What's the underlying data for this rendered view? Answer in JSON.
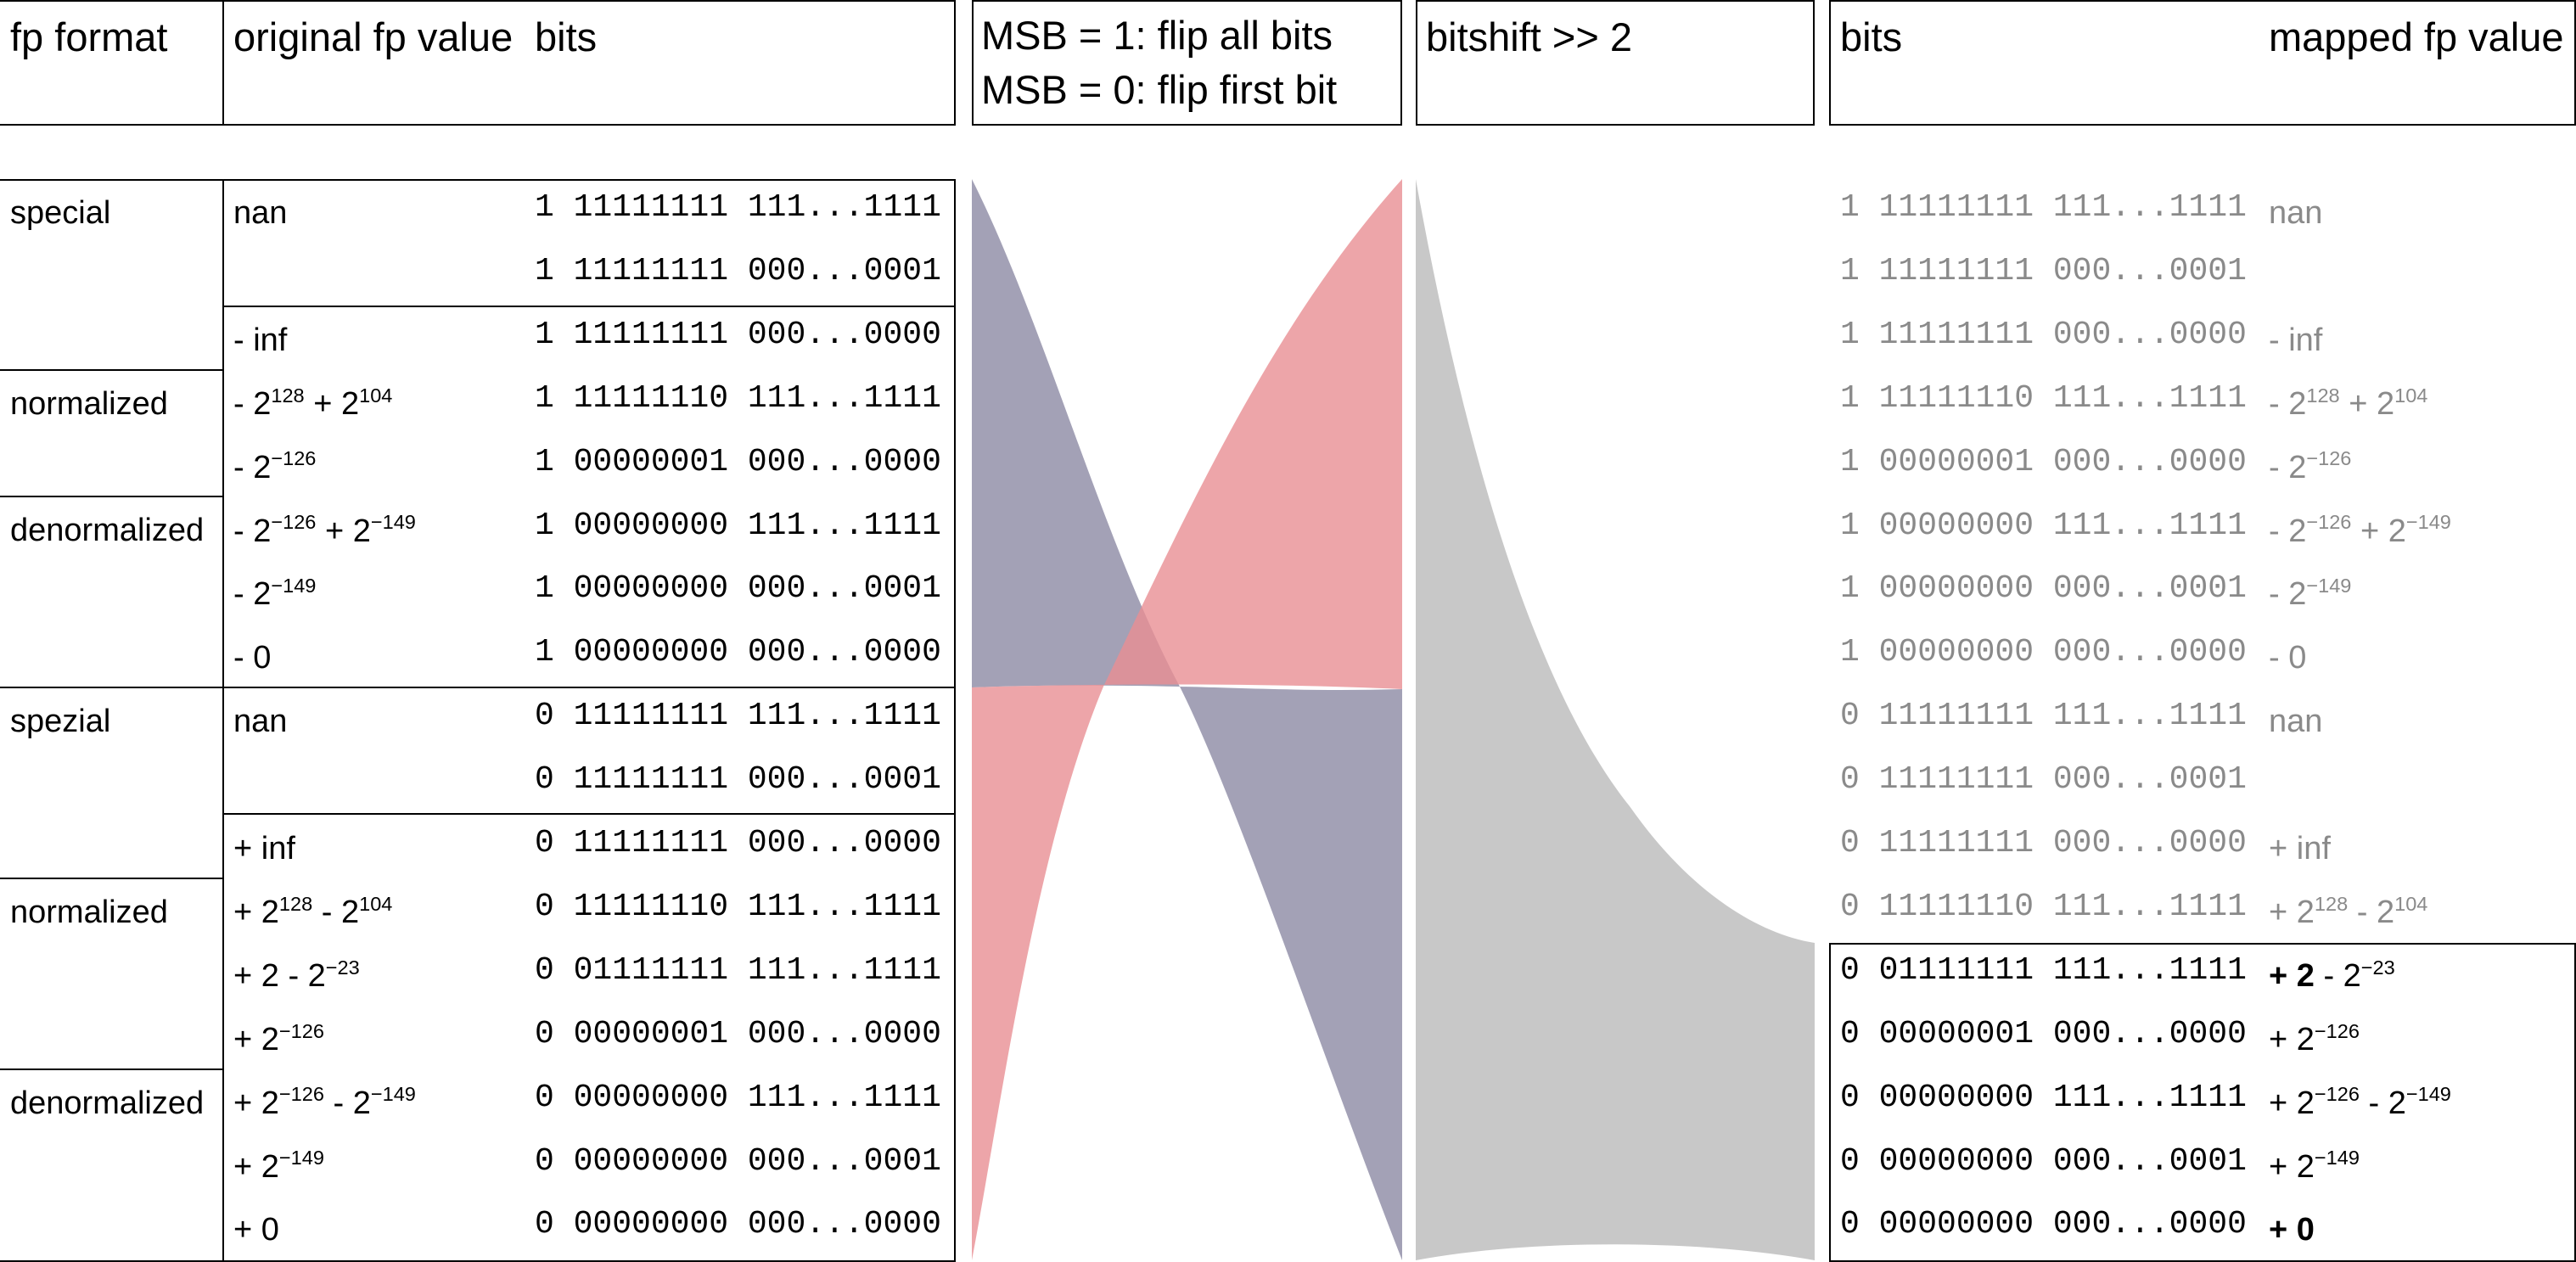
{
  "headers": {
    "fp_format": "fp format",
    "original_value": "original fp value",
    "bits": "bits",
    "flip_line1": "MSB = 1: flip all bits",
    "flip_line2": "MSB = 0: flip first bit",
    "bitshift": "bitshift >> 2",
    "bits_right": "bits",
    "mapped_value": "mapped fp value"
  },
  "formats": [
    "special",
    "normalized",
    "denormalized",
    "spezial",
    "normalized",
    "denormalized"
  ],
  "rows": [
    {
      "value": [
        "nan"
      ],
      "bits": "1 11111111 111...1111"
    },
    {
      "value": [],
      "bits": "1 11111111 000...0001"
    },
    {
      "value": [
        "- inf"
      ],
      "bits": "1 11111111 000...0000"
    },
    {
      "value": [
        "- 2",
        "128",
        " + 2",
        "104"
      ],
      "bits": "1 11111110 111...1111"
    },
    {
      "value": [
        "- 2",
        "−126"
      ],
      "bits": "1 00000001 000...0000"
    },
    {
      "value": [
        "- 2",
        "−126",
        " + 2",
        "−149"
      ],
      "bits": "1 00000000 111...1111"
    },
    {
      "value": [
        "- 2",
        "−149"
      ],
      "bits": "1 00000000 000...0001"
    },
    {
      "value": [
        "- 0"
      ],
      "bits": "1 00000000 000...0000"
    },
    {
      "value": [
        "nan"
      ],
      "bits": "0 11111111 111...1111"
    },
    {
      "value": [],
      "bits": "0 11111111 000...0001"
    },
    {
      "value": [
        "+ inf"
      ],
      "bits": "0 11111111 000...0000"
    },
    {
      "value": [
        "+ 2",
        "128",
        " - 2",
        "104"
      ],
      "bits": "0 11111110 111...1111"
    },
    {
      "value": [
        "+ 2 - 2",
        "−23"
      ],
      "bits": "0 01111111 111...1111"
    },
    {
      "value": [
        "+ 2",
        "−126"
      ],
      "bits": "0 00000001 000...0000"
    },
    {
      "value": [
        "+ 2",
        "−126",
        " - 2",
        "−149"
      ],
      "bits": "0 00000000 111...1111"
    },
    {
      "value": [
        "+ 2",
        "−149"
      ],
      "bits": "0 00000000 000...0001"
    },
    {
      "value": [
        "+ 0"
      ],
      "bits": "0 00000000 000...0000"
    }
  ],
  "mapped_rows": [
    {
      "bits": "1 11111111 111...1111",
      "value": [
        "nan"
      ]
    },
    {
      "bits": "1 11111111 000...0001",
      "value": []
    },
    {
      "bits": "1 11111111 000...0000",
      "value": [
        "- inf"
      ]
    },
    {
      "bits": "1 11111110 111...1111",
      "value": [
        "- 2",
        "128",
        " + 2",
        "104"
      ]
    },
    {
      "bits": "1 00000001 000...0000",
      "value": [
        "- 2",
        "−126"
      ]
    },
    {
      "bits": "1 00000000 111...1111",
      "value": [
        "- 2",
        "−126",
        " + 2",
        "−149"
      ]
    },
    {
      "bits": "1 00000000 000...0001",
      "value": [
        "- 2",
        "−149"
      ]
    },
    {
      "bits": "1 00000000 000...0000",
      "value": [
        "- 0"
      ]
    },
    {
      "bits": "0 11111111 111...1111",
      "value": [
        "nan"
      ]
    },
    {
      "bits": "0 11111111 000...0001",
      "value": []
    },
    {
      "bits": "0 11111111 000...0000",
      "value": [
        "+ inf"
      ]
    },
    {
      "bits": "0 11111110 111...1111",
      "value": [
        "+ 2",
        "128",
        " - 2",
        "104"
      ]
    },
    {
      "bits": "0 01111111 111...1111",
      "value": [
        "+ 2",
        " - 2",
        "−23"
      ]
    },
    {
      "bits": "0 00000001 000...0000",
      "value": [
        "+ 2",
        "−126"
      ]
    },
    {
      "bits": "0 00000000 111...1111",
      "value": [
        "+ 2",
        "−126",
        " - 2",
        "−149"
      ]
    },
    {
      "bits": "0 00000000 000...0001",
      "value": [
        "+ 2",
        "−149"
      ]
    },
    {
      "bits": "0 00000000 000...0000",
      "value": [
        "+ 0"
      ]
    }
  ],
  "colors": {
    "flip_all": "#e88f93",
    "flip_first": "#8c8aa4",
    "shift": "#bebebe",
    "gray_text": "#8a8a8a"
  }
}
